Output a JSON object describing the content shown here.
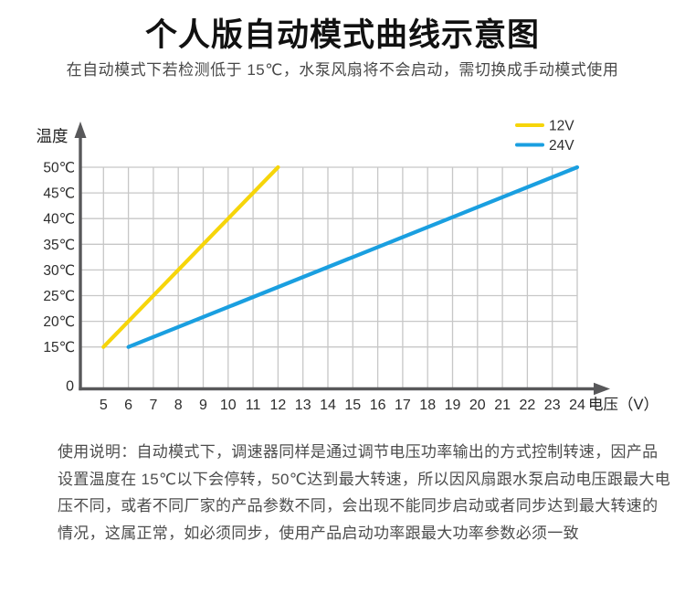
{
  "page": {
    "title": "个人版自动模式曲线示意图",
    "subtitle": "在自动模式下若检测低于 15℃，水泵风扇将不会启动，需切换成手动模式使用"
  },
  "chart_data": {
    "type": "line",
    "title": "个人版自动模式曲线示意图",
    "xlabel": "电压（V）",
    "ylabel": "温度",
    "xlim": [
      5,
      24
    ],
    "ylim": [
      15,
      50
    ],
    "x_ticks": [
      5,
      6,
      7,
      8,
      9,
      10,
      11,
      12,
      13,
      14,
      15,
      16,
      17,
      18,
      19,
      20,
      21,
      22,
      23,
      24
    ],
    "y_tick_values": [
      50,
      45,
      40,
      35,
      30,
      25,
      20,
      15
    ],
    "y_tick_suffix": "℃",
    "origin_label": "0",
    "grid": true,
    "axis_note": "y axis breaks between 0 and 15℃; axes end in arrowheads",
    "legend_position": "top-right",
    "series": [
      {
        "name": "12V",
        "color": "#f6d50a",
        "points": [
          [
            5,
            15
          ],
          [
            12,
            50
          ]
        ]
      },
      {
        "name": "24V",
        "color": "#1a9fe0",
        "points": [
          [
            6,
            15
          ],
          [
            24,
            50
          ]
        ]
      }
    ],
    "colors": {
      "axis": "#58585a",
      "grid": "#c7c7c7",
      "tick_label": "#2d2d2d",
      "series_12v": "#f6d50a",
      "series_24v": "#1a9fe0"
    }
  },
  "notes": {
    "lines": [
      "使用说明：自动模式下，调速器同样是通过调节电压功率输出的方式控制转速，因产品",
      "设置温度在 15℃以下会停转，50℃达到最大转速，所以因风扇跟水泵启动电压跟最大电",
      "压不同，或者不同厂家的产品参数不同，会出现不能同步启动或者同步达到最大转速的",
      "情况，这属正常，如必须同步，使用产品启动功率跟最大功率参数必须一致"
    ]
  }
}
